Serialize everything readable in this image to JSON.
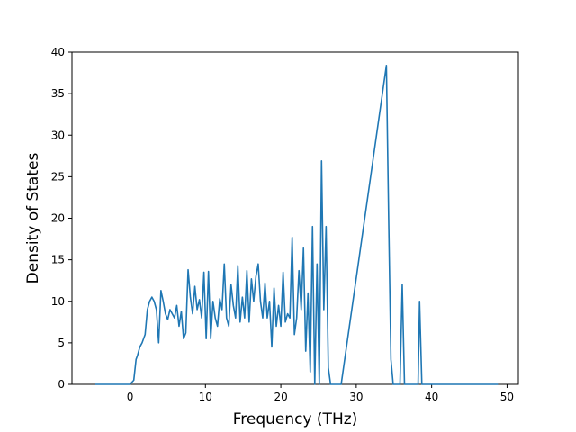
{
  "chart_data": {
    "type": "line",
    "title": "",
    "xlabel": "Frequency (THz)",
    "ylabel": "Density of States",
    "xlim": [
      -7.7,
      51.5
    ],
    "ylim": [
      0,
      40
    ],
    "x_ticks": [
      0,
      10,
      20,
      30,
      40,
      50
    ],
    "y_ticks": [
      0,
      5,
      10,
      15,
      20,
      25,
      30,
      35,
      40
    ],
    "x_tick_labels": [
      "0",
      "10",
      "20",
      "30",
      "40",
      "50"
    ],
    "y_tick_labels": [
      "0",
      "5",
      "10",
      "15",
      "20",
      "25",
      "30",
      "35",
      "40"
    ],
    "grid": false,
    "line_color": "#1f77b4",
    "series": [
      {
        "x": [
          -4.6,
          0,
          0.5,
          0.8,
          1.0,
          1.3,
          1.6,
          2.0,
          2.3,
          2.6,
          2.9,
          3.2,
          3.5,
          3.8,
          4.1,
          4.4,
          4.7,
          5.0,
          5.3,
          5.6,
          5.9,
          6.2,
          6.5,
          6.8,
          7.1,
          7.4,
          7.7,
          8.0,
          8.3,
          8.6,
          8.9,
          9.2,
          9.5,
          9.8,
          10.1,
          10.4,
          10.7,
          11.0,
          11.3,
          11.6,
          11.9,
          12.2,
          12.5,
          12.8,
          13.1,
          13.4,
          13.7,
          14.0,
          14.3,
          14.6,
          14.9,
          15.2,
          15.5,
          15.8,
          16.1,
          16.4,
          16.7,
          17.0,
          17.3,
          17.6,
          17.9,
          18.2,
          18.5,
          18.8,
          19.1,
          19.4,
          19.7,
          20.0,
          20.3,
          20.6,
          20.9,
          21.2,
          21.5,
          21.8,
          22.1,
          22.4,
          22.7,
          23.0,
          23.3,
          23.6,
          23.9,
          24.2,
          24.5,
          24.8,
          25.1,
          25.4,
          25.7,
          26.0,
          26.3,
          26.6,
          26.9,
          27.2,
          27.6,
          28.0,
          34.0,
          34.3,
          34.6,
          34.9,
          35.2,
          35.5,
          35.8,
          36.1,
          36.4,
          36.7,
          37.0,
          37.6,
          38.0,
          38.2,
          38.4,
          38.7,
          39.0,
          48.8
        ],
        "y": [
          0,
          0,
          0.5,
          3.0,
          3.5,
          4.5,
          5.0,
          6.0,
          9.0,
          10.0,
          10.5,
          10.0,
          9.0,
          5.0,
          11.3,
          10.0,
          8.5,
          7.8,
          9.0,
          8.5,
          8.0,
          9.5,
          7.0,
          8.8,
          5.5,
          6.2,
          13.8,
          10.5,
          8.5,
          11.8,
          9.0,
          10.2,
          8.0,
          13.5,
          5.5,
          13.6,
          5.5,
          10.0,
          8.0,
          7.0,
          10.3,
          9.0,
          14.5,
          8.0,
          7.0,
          12.0,
          9.5,
          8.0,
          14.3,
          7.5,
          10.5,
          8.0,
          13.7,
          7.5,
          12.7,
          10.0,
          13.0,
          14.5,
          10.0,
          8.0,
          12.2,
          8.0,
          10.0,
          4.5,
          11.6,
          7.0,
          9.5,
          7.0,
          13.5,
          7.5,
          8.5,
          8.0,
          17.7,
          6.0,
          8.0,
          13.7,
          9.0,
          16.4,
          4.0,
          11.0,
          1.5,
          19.0,
          0,
          14.5,
          0,
          26.9,
          9.0,
          19.0,
          2.0,
          0,
          0,
          0,
          0,
          0,
          38.4,
          20.0,
          3.0,
          0,
          0,
          0,
          0,
          12.0,
          0,
          0,
          0,
          0,
          0,
          0,
          10.0,
          0,
          0,
          0
        ]
      }
    ]
  }
}
